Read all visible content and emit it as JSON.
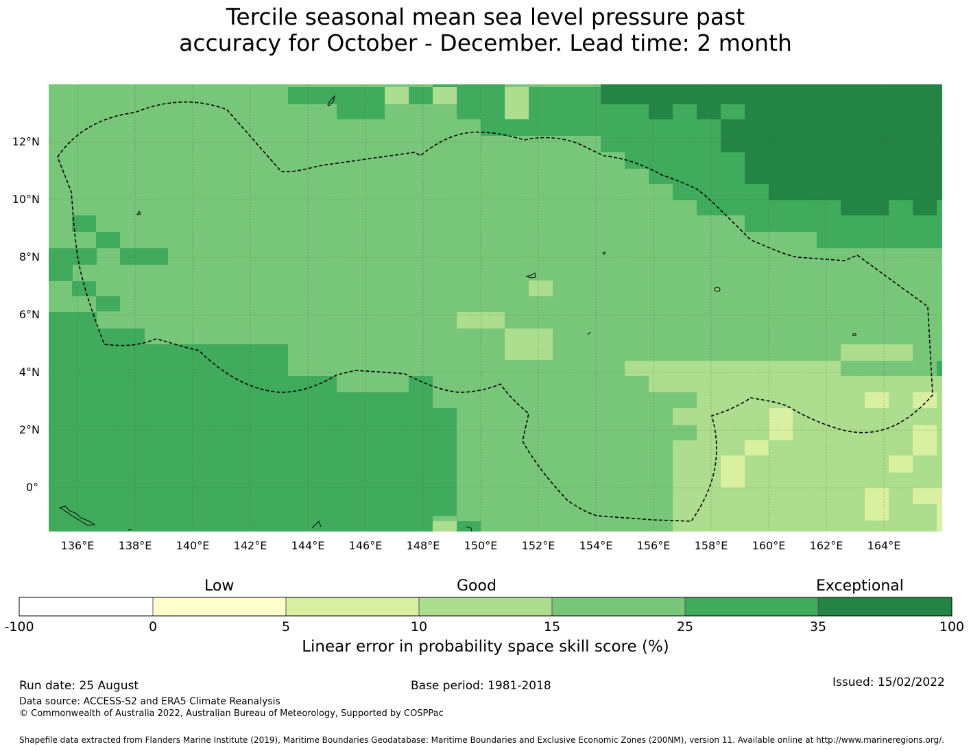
{
  "title_line1": "Tercile seasonal mean sea level pressure past",
  "title_line2": "accuracy for October - December. Lead time: 2 month",
  "map": {
    "lon_ticks": [
      "136°E",
      "138°E",
      "140°E",
      "142°E",
      "144°E",
      "146°E",
      "148°E",
      "150°E",
      "152°E",
      "154°E",
      "156°E",
      "158°E",
      "160°E",
      "162°E",
      "164°E"
    ],
    "lat_ticks": [
      "12°N",
      "10°N",
      "8°N",
      "6°N",
      "4°N",
      "2°N",
      "0°"
    ],
    "lon_range": [
      135,
      166
    ],
    "lat_range": [
      -1.5,
      14
    ],
    "grid_cell_deg": [
      0.833,
      0.556
    ],
    "region": "Federated States of Micronesia EEZ (dashed boundary)"
  },
  "legend": {
    "categories": {
      "low": "Low",
      "good": "Good",
      "exceptional": "Exceptional"
    },
    "ticks": [
      "-100",
      "0",
      "5",
      "10",
      "15",
      "25",
      "35",
      "100"
    ],
    "colors": [
      "#ffffff",
      "#ffffcc",
      "#d9f0a3",
      "#addd8e",
      "#78c679",
      "#41ab5d",
      "#238443"
    ],
    "title": "Linear error in probability space skill score (%)"
  },
  "footer": {
    "run_date": "Run date: 25 August",
    "base_period": "Base period: 1981-2018",
    "issued": "Issued: 15/02/2022",
    "data_source": "Data source: ACCESS-S2 and ERA5 Climate Reanalysis",
    "copyright": "© Commonwealth of Australia 2022, Australian Bureau of Meteorology, Supported by COSPPac",
    "shapefile": "Shapefile data extracted from Flanders Marine Institute (2019), Maritime Boundaries Geodatabase: Maritime Boundaries and Exclusive Economic Zones (200NM), version 11. Available online at http://www.marineregions.org/."
  }
}
